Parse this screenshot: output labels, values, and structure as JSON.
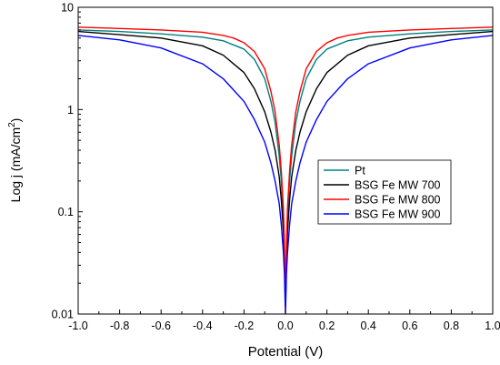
{
  "chart_data": {
    "type": "line",
    "title": "",
    "xlabel": "Potential (V)",
    "ylabel": "Log j (mA/cm",
    "ylabel_sup": "2",
    "ylabel_close": ")",
    "xlim": [
      -1.0,
      1.0
    ],
    "ylim": [
      0.01,
      10
    ],
    "y_scale": "log",
    "grid": false,
    "legend_position": "center-right",
    "x_ticks": [
      "-1.0",
      "-0.8",
      "-0.6",
      "-0.4",
      "-0.2",
      "0.0",
      "0.2",
      "0.4",
      "0.6",
      "0.8",
      "1.0"
    ],
    "y_ticks": [
      "0.01",
      "0.1",
      "1",
      "10"
    ],
    "series": [
      {
        "name": "Pt",
        "color": "#008080",
        "x": [
          -1.0,
          -0.8,
          -0.6,
          -0.4,
          -0.3,
          -0.2,
          -0.15,
          -0.1,
          -0.07,
          -0.05,
          -0.03,
          -0.02,
          -0.01,
          -0.005,
          0.0,
          0.005,
          0.01,
          0.02,
          0.03,
          0.05,
          0.07,
          0.1,
          0.15,
          0.2,
          0.3,
          0.4,
          0.6,
          0.8,
          1.0
        ],
        "y": [
          6.0,
          5.8,
          5.5,
          5.1,
          4.7,
          3.9,
          3.1,
          2.0,
          1.2,
          0.75,
          0.35,
          0.2,
          0.09,
          0.045,
          0.012,
          0.045,
          0.09,
          0.2,
          0.35,
          0.75,
          1.2,
          2.0,
          3.1,
          3.9,
          4.7,
          5.1,
          5.5,
          5.8,
          6.0
        ]
      },
      {
        "name": "BSG Fe MW 700",
        "color": "#000000",
        "x": [
          -1.0,
          -0.8,
          -0.6,
          -0.4,
          -0.3,
          -0.2,
          -0.15,
          -0.1,
          -0.07,
          -0.05,
          -0.03,
          -0.02,
          -0.01,
          -0.005,
          0.0,
          0.005,
          0.01,
          0.02,
          0.03,
          0.05,
          0.07,
          0.1,
          0.15,
          0.2,
          0.3,
          0.4,
          0.6,
          0.8,
          1.0
        ],
        "y": [
          5.8,
          5.4,
          5.0,
          4.2,
          3.4,
          2.3,
          1.6,
          0.95,
          0.6,
          0.4,
          0.22,
          0.13,
          0.065,
          0.035,
          0.012,
          0.035,
          0.065,
          0.13,
          0.22,
          0.4,
          0.6,
          0.95,
          1.6,
          2.3,
          3.4,
          4.2,
          5.0,
          5.4,
          5.8
        ]
      },
      {
        "name": "BSG Fe MW 800",
        "color": "#ff0000",
        "x": [
          -1.0,
          -0.8,
          -0.6,
          -0.4,
          -0.3,
          -0.25,
          -0.2,
          -0.15,
          -0.1,
          -0.07,
          -0.05,
          -0.03,
          -0.02,
          -0.01,
          -0.005,
          0.0,
          0.005,
          0.01,
          0.02,
          0.03,
          0.05,
          0.07,
          0.1,
          0.15,
          0.2,
          0.25,
          0.3,
          0.4,
          0.6,
          0.8,
          1.0
        ],
        "y": [
          6.4,
          6.2,
          6.0,
          5.7,
          5.3,
          5.0,
          4.5,
          3.7,
          2.5,
          1.5,
          0.95,
          0.45,
          0.25,
          0.11,
          0.05,
          0.012,
          0.05,
          0.11,
          0.25,
          0.45,
          0.95,
          1.5,
          2.5,
          3.7,
          4.5,
          5.0,
          5.3,
          5.7,
          6.0,
          6.2,
          6.4
        ]
      },
      {
        "name": "BSG Fe MW 900",
        "color": "#0000ff",
        "x": [
          -1.0,
          -0.8,
          -0.6,
          -0.4,
          -0.3,
          -0.2,
          -0.15,
          -0.1,
          -0.07,
          -0.05,
          -0.03,
          -0.02,
          -0.01,
          -0.005,
          0.0,
          0.005,
          0.01,
          0.02,
          0.03,
          0.05,
          0.07,
          0.1,
          0.15,
          0.2,
          0.3,
          0.4,
          0.6,
          0.8,
          1.0
        ],
        "y": [
          5.3,
          4.8,
          4.0,
          2.8,
          2.0,
          1.2,
          0.8,
          0.48,
          0.3,
          0.2,
          0.12,
          0.075,
          0.04,
          0.025,
          0.01,
          0.025,
          0.04,
          0.075,
          0.12,
          0.2,
          0.3,
          0.48,
          0.8,
          1.2,
          2.0,
          2.8,
          4.0,
          4.8,
          5.3
        ]
      }
    ]
  }
}
